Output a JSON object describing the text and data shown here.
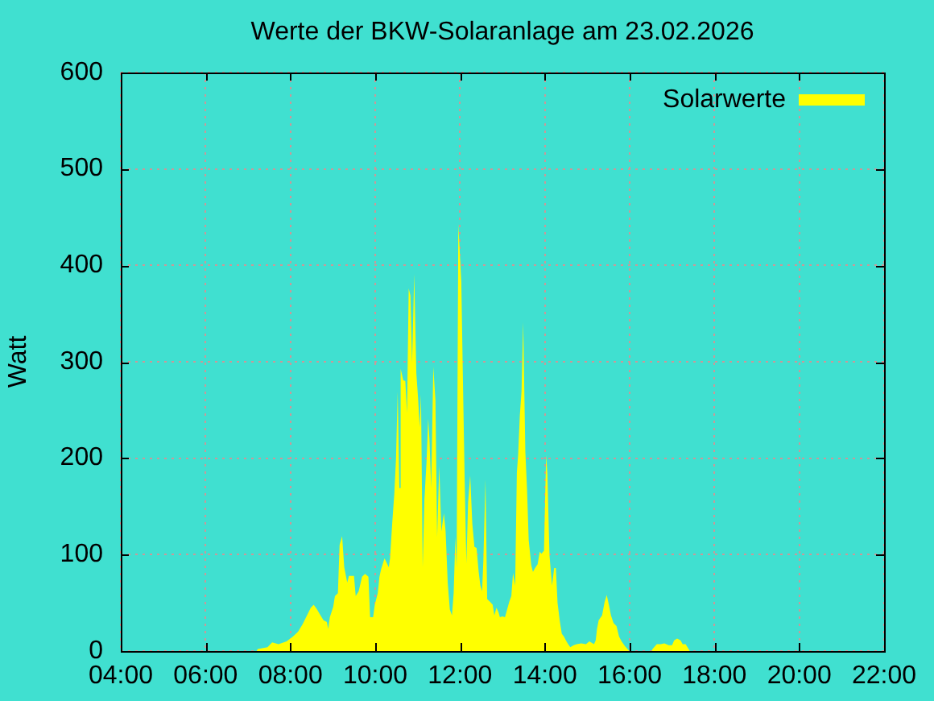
{
  "chart_data": {
    "type": "area",
    "title": "Werte der BKW-Solaranlage am 23.02.2026",
    "ylabel": "Watt",
    "x": [
      7.2,
      7.23,
      7.46,
      7.57,
      7.72,
      7.91,
      8.06,
      8.18,
      8.29,
      8.37,
      8.48,
      8.55,
      8.63,
      8.71,
      8.78,
      8.86,
      8.89,
      8.93,
      9.01,
      9.05,
      9.12,
      9.16,
      9.22,
      9.27,
      9.34,
      9.38,
      9.5,
      9.54,
      9.61,
      9.69,
      9.76,
      9.84,
      9.88,
      9.95,
      9.99,
      10.06,
      10.1,
      10.14,
      10.22,
      10.32,
      10.35,
      10.4,
      10.45,
      10.49,
      10.53,
      10.57,
      10.6,
      10.66,
      10.71,
      10.75,
      10.79,
      10.83,
      10.87,
      10.92,
      10.97,
      11.01,
      11.05,
      11.08,
      11.12,
      11.16,
      11.21,
      11.25,
      11.28,
      11.32,
      11.37,
      11.42,
      11.46,
      11.51,
      11.56,
      11.62,
      11.66,
      11.71,
      11.76,
      11.81,
      11.85,
      11.89,
      11.92,
      11.96,
      12.03,
      12.08,
      12.11,
      12.15,
      12.19,
      12.24,
      12.29,
      12.34,
      12.39,
      12.44,
      12.48,
      12.52,
      12.55,
      12.6,
      12.64,
      12.71,
      12.77,
      12.81,
      12.86,
      12.91,
      12.94,
      13,
      13.06,
      13.11,
      13.16,
      13.21,
      13.25,
      13.3,
      13.34,
      13.37,
      13.41,
      13.45,
      13.49,
      13.54,
      13.58,
      13.62,
      13.68,
      13.72,
      13.77,
      13.83,
      13.88,
      13.92,
      13.98,
      14.03,
      14.06,
      14.11,
      14.17,
      14.22,
      14.26,
      14.3,
      14.35,
      14.4,
      14.45,
      14.51,
      14.55,
      14.6,
      14.68,
      14.75,
      14.86,
      14.97,
      15.05,
      15.16,
      15.2,
      15.23,
      15.27,
      15.35,
      15.41,
      15.46,
      15.51,
      15.56,
      15.62,
      15.69,
      15.75,
      15.81,
      15.89,
      15.95,
      15.99,
      16.52,
      16.54,
      16.64,
      16.73,
      16.82,
      16.92,
      17,
      17.05,
      17.12,
      17.2,
      17.25,
      17.32,
      17.39,
      17.42
    ],
    "series": [
      {
        "name": "Solarwerte",
        "color": "#ffff00",
        "values": [
          0,
          2,
          4,
          9,
          7,
          10,
          15,
          20,
          28,
          35,
          45,
          48,
          43,
          37,
          32,
          30,
          23,
          35,
          46,
          57,
          60,
          110,
          119,
          87,
          71,
          78,
          78,
          57,
          62,
          77,
          80,
          77,
          35,
          35,
          48,
          60,
          77,
          85,
          96,
          87,
          96,
          132,
          163,
          199,
          269,
          169,
          293,
          281,
          280,
          247,
          376,
          369,
          299,
          391,
          288,
          263,
          232,
          266,
          87,
          157,
          196,
          241,
          219,
          169,
          295,
          260,
          118,
          192,
          124,
          143,
          124,
          71,
          43,
          37,
          60,
          118,
          86,
          443,
          383,
          252,
          177,
          91,
          154,
          182,
          132,
          108,
          107,
          82,
          68,
          62,
          93,
          178,
          54,
          51,
          48,
          37,
          45,
          40,
          35,
          36,
          35,
          43,
          51,
          57,
          81,
          68,
          185,
          203,
          244,
          269,
          341,
          207,
          168,
          115,
          89,
          82,
          86,
          90,
          103,
          101,
          104,
          203,
          184,
          99,
          68,
          86,
          86,
          50,
          32,
          18,
          15,
          10,
          7,
          4,
          6,
          7,
          8,
          7,
          10,
          7,
          11,
          23,
          32,
          37,
          51,
          58,
          48,
          37,
          29,
          26,
          15,
          10,
          5,
          2,
          0,
          0,
          2,
          7,
          7,
          8,
          6,
          6,
          11,
          13,
          11,
          7,
          7,
          2,
          0
        ]
      }
    ],
    "xlim": [
      4,
      22
    ],
    "xticks": [
      {
        "value": 4,
        "label": "04:00"
      },
      {
        "value": 6,
        "label": "06:00"
      },
      {
        "value": 8,
        "label": "08:00"
      },
      {
        "value": 10,
        "label": "10:00"
      },
      {
        "value": 12,
        "label": "12:00"
      },
      {
        "value": 14,
        "label": "14:00"
      },
      {
        "value": 16,
        "label": "16:00"
      },
      {
        "value": 18,
        "label": "18:00"
      },
      {
        "value": 20,
        "label": "20:00"
      },
      {
        "value": 22,
        "label": "22:00"
      }
    ],
    "ylim": [
      0,
      600
    ],
    "yticks": [
      0,
      100,
      200,
      300,
      400,
      500,
      600
    ],
    "grid": true,
    "legend": "top right"
  }
}
